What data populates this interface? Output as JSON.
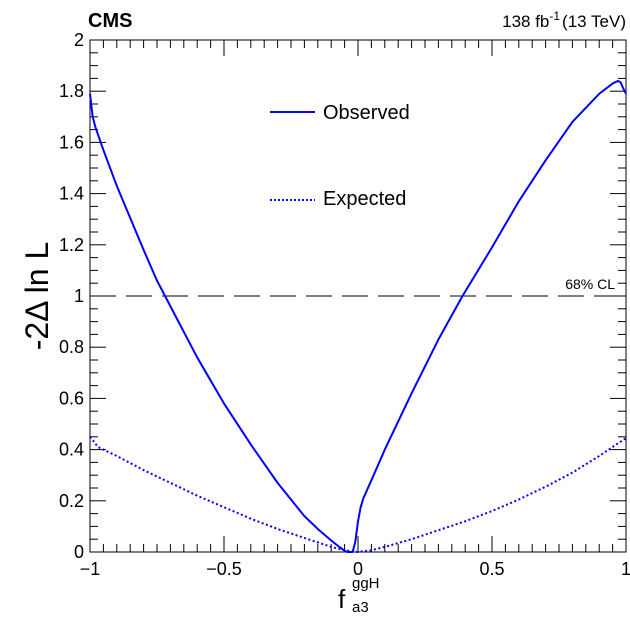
{
  "chart_data": {
    "type": "line",
    "header": {
      "experiment": "CMS",
      "lumi_value": "138 fb",
      "lumi_exp": "-1",
      "energy": "(13 TeV)"
    },
    "xlabel": {
      "main": "f",
      "sup": "ggH",
      "sub": "a3"
    },
    "ylabel": "-2Δ ln L",
    "xlim": [
      -1,
      1
    ],
    "ylim": [
      0,
      2
    ],
    "x_ticks": [
      -1,
      -0.5,
      0,
      0.5,
      1
    ],
    "x_tick_labels": [
      "−1",
      "−0.5",
      "0",
      "0.5",
      "1"
    ],
    "y_ticks": [
      0,
      0.2,
      0.4,
      0.6,
      0.8,
      1,
      1.2,
      1.4,
      1.6,
      1.8,
      2
    ],
    "y_tick_labels": [
      "0",
      "0.2",
      "0.4",
      "0.6",
      "0.8",
      "1",
      "1.2",
      "1.4",
      "1.6",
      "1.8",
      "2"
    ],
    "legend_position": "top-center",
    "reference_line": {
      "y": 1,
      "label": "68% CL",
      "color": "#000000",
      "style": "long-dash"
    },
    "series": [
      {
        "name": "Observed",
        "style": "solid",
        "color": "#0000ff",
        "points": [
          [
            -1.0,
            1.79
          ],
          [
            -0.99,
            1.7
          ],
          [
            -0.98,
            1.66
          ],
          [
            -0.95,
            1.57
          ],
          [
            -0.9,
            1.43
          ],
          [
            -0.8,
            1.18
          ],
          [
            -0.75,
            1.06
          ],
          [
            -0.7,
            0.96
          ],
          [
            -0.6,
            0.76
          ],
          [
            -0.5,
            0.58
          ],
          [
            -0.4,
            0.42
          ],
          [
            -0.3,
            0.27
          ],
          [
            -0.2,
            0.14
          ],
          [
            -0.15,
            0.09
          ],
          [
            -0.1,
            0.045
          ],
          [
            -0.07,
            0.02
          ],
          [
            -0.05,
            0.005
          ],
          [
            -0.04,
            0.0
          ],
          [
            -0.02,
            0.0
          ],
          [
            -0.01,
            0.04
          ],
          [
            0.0,
            0.12
          ],
          [
            0.01,
            0.175
          ],
          [
            0.02,
            0.21
          ],
          [
            0.05,
            0.28
          ],
          [
            0.1,
            0.4
          ],
          [
            0.2,
            0.62
          ],
          [
            0.3,
            0.83
          ],
          [
            0.39,
            1.0
          ],
          [
            0.5,
            1.19
          ],
          [
            0.6,
            1.37
          ],
          [
            0.7,
            1.53
          ],
          [
            0.8,
            1.68
          ],
          [
            0.9,
            1.79
          ],
          [
            0.95,
            1.83
          ],
          [
            0.97,
            1.84
          ],
          [
            0.98,
            1.835
          ],
          [
            0.99,
            1.81
          ],
          [
            1.0,
            1.79
          ]
        ]
      },
      {
        "name": "Expected",
        "style": "dotted",
        "color": "#0000ff",
        "points": [
          [
            -1.0,
            0.45
          ],
          [
            -0.97,
            0.41
          ],
          [
            -0.9,
            0.375
          ],
          [
            -0.8,
            0.32
          ],
          [
            -0.7,
            0.27
          ],
          [
            -0.6,
            0.22
          ],
          [
            -0.5,
            0.175
          ],
          [
            -0.4,
            0.13
          ],
          [
            -0.3,
            0.09
          ],
          [
            -0.2,
            0.055
          ],
          [
            -0.1,
            0.02
          ],
          [
            -0.05,
            0.007
          ],
          [
            0.0,
            0.0
          ],
          [
            0.05,
            0.007
          ],
          [
            0.1,
            0.02
          ],
          [
            0.2,
            0.05
          ],
          [
            0.3,
            0.085
          ],
          [
            0.4,
            0.12
          ],
          [
            0.5,
            0.16
          ],
          [
            0.6,
            0.205
          ],
          [
            0.7,
            0.255
          ],
          [
            0.8,
            0.31
          ],
          [
            0.9,
            0.375
          ],
          [
            1.0,
            0.445
          ]
        ]
      }
    ]
  }
}
